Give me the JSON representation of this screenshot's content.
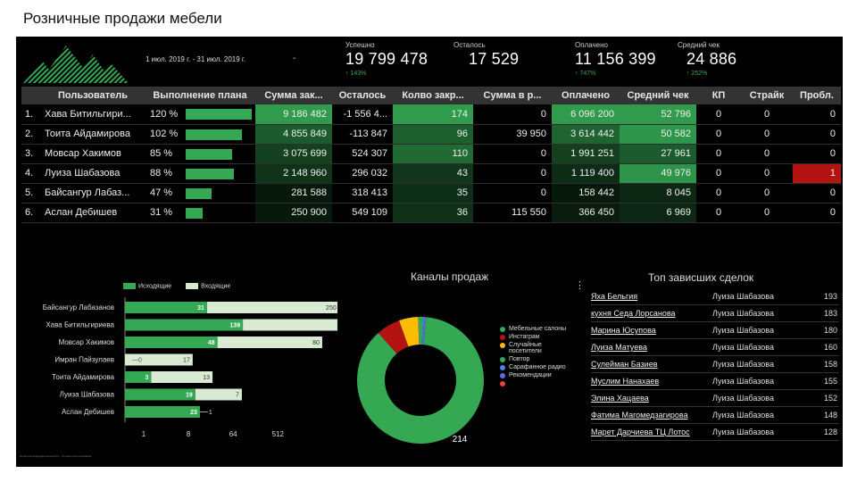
{
  "page_title": "Розничные продажи мебели",
  "logo_icon": "mountains-logo-icon",
  "date_range": "1 июл. 2019 г. - 31 июл. 2019 г.",
  "date_range_dropdown": "-",
  "kpis": [
    {
      "label": "Успешно",
      "value": "19 799 478",
      "delta": "↑ 143%"
    },
    {
      "label": "Осталось",
      "value": "17 529",
      "delta": ""
    },
    {
      "label": "Оплачено",
      "value": "11 156 399",
      "delta": "↑ 747%"
    },
    {
      "label": "Средний чек",
      "value": "24 886",
      "delta": "↑ 252%"
    }
  ],
  "table": {
    "headers": [
      "",
      "Пользователь",
      "Выполнение плана",
      "Сумма зак...",
      "Осталось",
      "Колво закр...",
      "Сумма в р...",
      "Оплачено",
      "Средний чек",
      "КП",
      "Страйк",
      "Пробл."
    ],
    "rows": [
      {
        "idx": "1.",
        "user": "Хава Битильгири...",
        "plan": "120 %",
        "plan_value": 1.2,
        "sum": "9 186 482",
        "left": "-1 556 4...",
        "count": "174",
        "in_work": "0",
        "paid": "6 096 200",
        "avg": "52 796",
        "kp": "0",
        "strike": "0",
        "prob": "0"
      },
      {
        "idx": "2.",
        "user": "Тоита Айдамирова",
        "plan": "102 %",
        "plan_value": 1.02,
        "sum": "4 855 849",
        "left": "-113 847",
        "count": "96",
        "in_work": "39 950",
        "paid": "3 614 442",
        "avg": "50 582",
        "kp": "0",
        "strike": "0",
        "prob": "0"
      },
      {
        "idx": "3.",
        "user": "Мовсар Хакимов",
        "plan": "85 %",
        "plan_value": 0.85,
        "sum": "3 075 699",
        "left": "524 307",
        "count": "110",
        "in_work": "0",
        "paid": "1 991 251",
        "avg": "27 961",
        "kp": "0",
        "strike": "0",
        "prob": "0"
      },
      {
        "idx": "4.",
        "user": "Луиза Шабазова",
        "plan": "88 %",
        "plan_value": 0.88,
        "sum": "2 148 960",
        "left": "296 032",
        "count": "43",
        "in_work": "0",
        "paid": "1 119 400",
        "avg": "49 976",
        "kp": "0",
        "strike": "0",
        "prob": "1"
      },
      {
        "idx": "5.",
        "user": "Байсангур Лабаз...",
        "plan": "47 %",
        "plan_value": 0.47,
        "sum": "281 588",
        "left": "318 413",
        "count": "35",
        "in_work": "0",
        "paid": "158 442",
        "avg": "8 045",
        "kp": "0",
        "strike": "0",
        "prob": "0"
      },
      {
        "idx": "6.",
        "user": "Аслан Дебишев",
        "plan": "31 %",
        "plan_value": 0.31,
        "sum": "250 900",
        "left": "549 109",
        "count": "36",
        "in_work": "115 550",
        "paid": "366 450",
        "avg": "6 969",
        "kp": "0",
        "strike": "0",
        "prob": "0"
      }
    ]
  },
  "colors": {
    "green": "#34a853",
    "green_light_fill": "#d9ead3",
    "red": "#b31412",
    "orange": "#ff6d00",
    "yellow": "#fbbc04",
    "blue": "#4285f4",
    "purple": "#5f6ed8"
  },
  "chart_data": [
    {
      "type": "bar",
      "orientation": "horizontal",
      "scale": "log",
      "categories": [
        "Байсангур Лабазанов",
        "Хава Битильгириева",
        "Мовсар Хакимов",
        "Имран Пайзулаев",
        "Тоита Айдамирова",
        "Луиза Шабазова",
        "Аслан Дебишев"
      ],
      "series": [
        {
          "name": "Исходящие",
          "values": [
            31,
            139,
            48,
            0,
            3,
            19,
            23
          ],
          "labels": [
            "31",
            "139",
            "48",
            "0",
            "3",
            "19",
            "23"
          ]
        },
        {
          "name": "Входящие",
          "values": [
            250,
            111,
            80,
            17,
            13,
            7,
            1
          ],
          "labels": [
            "250",
            "111",
            "80",
            "17",
            "13",
            "7",
            "1"
          ]
        }
      ],
      "x_ticks": [
        "1",
        "8",
        "64",
        "512"
      ],
      "xlim": [
        1,
        512
      ],
      "legend": "top"
    },
    {
      "type": "pie",
      "donut": true,
      "title": "Каналы продаж",
      "labels": [
        "Мебельные салоны",
        "Инстаграм",
        "Случайные посетители",
        "Повтор",
        "Сарафанное радио",
        "Рекомендации",
        ""
      ],
      "values": [
        214,
        15,
        12,
        3,
        1,
        1,
        0
      ],
      "data_labels": [
        "214",
        "",
        "",
        "",
        "",
        "",
        ""
      ],
      "colors": [
        "#34a853",
        "#b31412",
        "#fbbc04",
        "#34a853",
        "#4285f4",
        "#5f6ed8",
        "#ea4335"
      ],
      "legend": "right"
    }
  ],
  "top_deals": {
    "title": "Топ зависших сделок",
    "rows": [
      {
        "name": "Яха Бельгия",
        "user": "Луиза Шабазова",
        "count": "193"
      },
      {
        "name": "кухня Седа Лорсанова",
        "user": "Луиза Шабазова",
        "count": "183"
      },
      {
        "name": "Марина Юсупова",
        "user": "Луиза Шабазова",
        "count": "180"
      },
      {
        "name": "Луиза Матуева",
        "user": "Луиза Шабазова",
        "count": "160"
      },
      {
        "name": "Сулейман Базиев",
        "user": "Луиза Шабазова",
        "count": "158"
      },
      {
        "name": "Муслим Нанахаев",
        "user": "Луиза Шабазова",
        "count": "155"
      },
      {
        "name": "Элина Хацаева",
        "user": "Луиза Шабазова",
        "count": "152"
      },
      {
        "name": "Фатима Магомедзагирова",
        "user": "Луиза Шабазова",
        "count": "148"
      },
      {
        "name": "Марет Дарчиева ТЦ Лотос",
        "user": "Луиза Шабазова",
        "count": "128"
      }
    ]
  },
  "menu_icon": "more-vert-icon"
}
